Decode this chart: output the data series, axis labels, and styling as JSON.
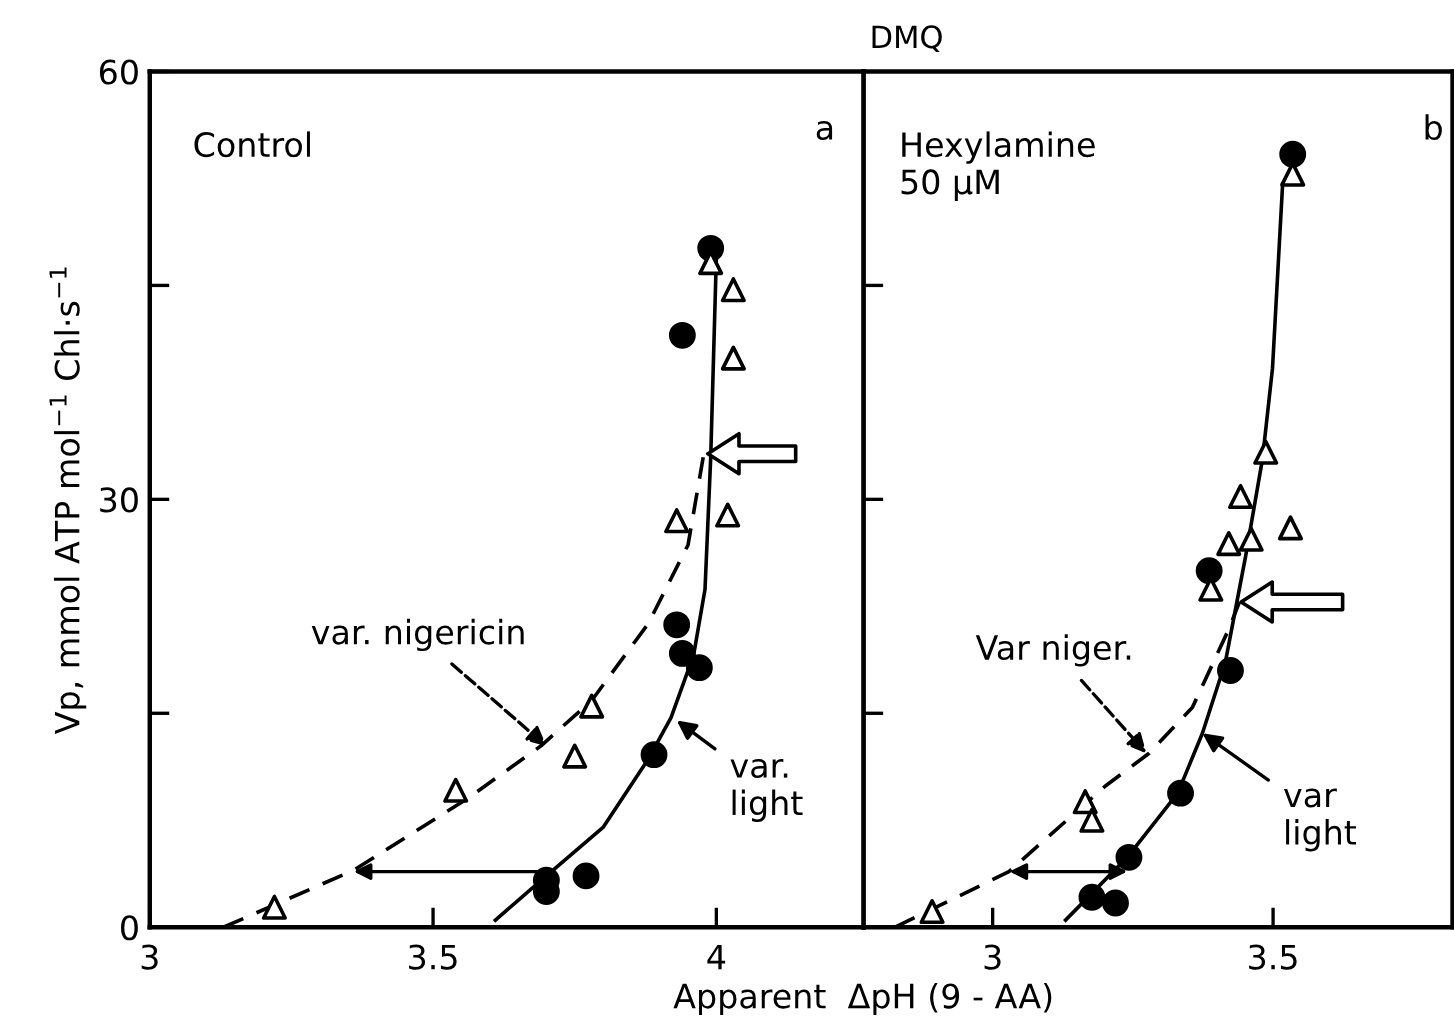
{
  "chart_data": [
    {
      "type": "scatter",
      "ylabel": "Vp, mmol ATP mol$^{−1}$ Chl·s$^{−1}$",
      "xlim": [
        3.0,
        4.26
      ],
      "ylim": [
        0,
        60
      ],
      "xticks": [
        3,
        {
          "value": 3.5,
          "label": "3.5"
        },
        4
      ],
      "yticks": [
        0,
        {
          "value": 15,
          "label": null
        },
        30,
        {
          "value": 45,
          "label": null
        },
        60
      ],
      "series": [
        {
          "type": "scatter",
          "marker": "circle",
          "color": "#000000",
          "x": [
            3.99,
            3.94,
            3.93,
            3.94,
            3.97,
            3.89,
            3.77,
            3.7,
            3.7
          ],
          "values": [
            47.6,
            41.5,
            21.2,
            19.2,
            18.2,
            12.1,
            3.6,
            3.3,
            2.5
          ]
        },
        {
          "type": "scatter",
          "marker": "triangle",
          "color": "#000000",
          "x": [
            3.99,
            4.03,
            4.03,
            3.93,
            4.02,
            3.78,
            3.75,
            3.54,
            3.22
          ],
          "values": [
            46.6,
            44.7,
            39.9,
            28.5,
            28.9,
            15.5,
            12.0,
            9.6,
            1.4
          ]
        },
        {
          "type": "line",
          "marker": "none",
          "line_style": "solid",
          "color": "#000000",
          "x": [
            3.61,
            3.7,
            3.8,
            3.88,
            3.92,
            3.96,
            3.98,
            3.99,
            4.0
          ],
          "values": [
            0.5,
            3.6,
            7.0,
            11.8,
            14.7,
            19.1,
            23.7,
            32.9,
            47.0
          ]
        },
        {
          "type": "line",
          "marker": "none",
          "line_style": "dashed",
          "color": "#000000",
          "x": [
            3.13,
            3.36,
            3.56,
            3.69,
            3.78,
            3.88,
            3.95,
            3.98
          ],
          "values": [
            0,
            4,
            9,
            12.7,
            15.9,
            21.3,
            26.8,
            33.7
          ]
        }
      ],
      "annotations": [
        "Control",
        "a",
        {
          "text": "var. nigericin",
          "x": 3.7,
          "y": 12.7
        },
        {
          "text": "var.\nlight",
          "x": 3.93,
          "y": 14.5
        }
      ]
    },
    {
      "type": "scatter",
      "title": "DMQ",
      "xlabel": "Apparent  ΔpH (9 - AA)",
      "xlim": [
        2.77,
        3.82
      ],
      "ylim": [
        0,
        60
      ],
      "xticks": [
        3,
        {
          "value": 3.5,
          "label": "3.5"
        }
      ],
      "yticks": [
        {
          "value": 15,
          "label": null
        },
        {
          "value": 30,
          "label": null
        },
        {
          "value": 45,
          "label": null
        }
      ],
      "tick_labels": "x",
      "series": [
        {
          "type": "scatter",
          "marker": "circle",
          "color": "#000000",
          "x": [
            3.535,
            3.386,
            3.424,
            3.335,
            3.243,
            3.219,
            3.177
          ],
          "values": [
            54.2,
            25.0,
            18.0,
            9.4,
            4.9,
            1.7,
            2.1
          ]
        },
        {
          "type": "scatter",
          "marker": "triangle",
          "color": "#000000",
          "x": [
            3.535,
            3.487,
            3.442,
            3.421,
            3.461,
            3.531,
            3.389,
            3.165,
            3.177,
            2.892
          ],
          "values": [
            52.8,
            33.3,
            30.2,
            26.9,
            27.2,
            28.0,
            23.7,
            8.8,
            7.5,
            1.1
          ]
        },
        {
          "type": "line",
          "marker": "none",
          "line_style": "solid",
          "color": "#000000",
          "x": [
            3.13,
            3.24,
            3.33,
            3.374,
            3.415,
            3.451,
            3.481,
            3.499,
            3.517
          ],
          "values": [
            0.5,
            4.9,
            9.4,
            13.6,
            18.6,
            26.0,
            32.8,
            39.2,
            52.1
          ]
        },
        {
          "type": "line",
          "marker": "none",
          "line_style": "dashed",
          "color": "#000000",
          "x": [
            2.826,
            3.029,
            3.201,
            3.279,
            3.356,
            3.421,
            3.44
          ],
          "values": [
            0,
            3.9,
            9.9,
            12.2,
            15.4,
            20.9,
            22.8
          ]
        }
      ],
      "annotations": [
        "Hexylamine\n50 µM",
        "b",
        {
          "text": "Var niger.",
          "x": 3.274,
          "y": 12.2
        },
        {
          "text": "var\nlight",
          "x": 3.374,
          "y": 13.6
        }
      ]
    }
  ]
}
